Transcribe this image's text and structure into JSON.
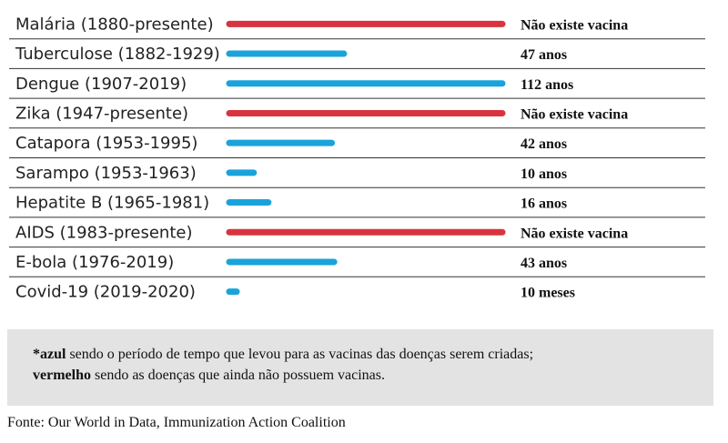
{
  "chart_data": {
    "type": "bar",
    "orientation": "horizontal",
    "unit": "years",
    "categories": [
      "Malária (1880-presente)",
      "Tuberculose (1882-1929)",
      "Dengue (1907-2019)",
      "Zika (1947-presente)",
      "Catapora (1953-1995)",
      "Sarampo (1953-1963)",
      "Hepatite B (1965-1981)",
      "AIDS (1983-presente)",
      "E-bola (1976-2019)",
      "Covid-19 (2019-2020)"
    ],
    "values": [
      null,
      47,
      112,
      null,
      42,
      10,
      16,
      null,
      43,
      0.83
    ],
    "status": [
      "no_vaccine",
      "vaccine",
      "vaccine",
      "no_vaccine",
      "vaccine",
      "vaccine",
      "vaccine",
      "no_vaccine",
      "vaccine",
      "vaccine"
    ],
    "value_labels": [
      "Não existe vacina",
      "47 anos",
      "112 anos",
      "Não existe vacina",
      "42 anos",
      "10 anos",
      "16 anos",
      "Não existe vacina",
      "43 anos",
      "10 meses"
    ],
    "xlim": [
      0,
      112
    ],
    "colors": {
      "vaccine": "#1aa3db",
      "no_vaccine": "#d8333f"
    }
  },
  "note": {
    "blue_marker": "*azul",
    "blue_text": " sendo o período de tempo que levou para as vacinas das doenças serem criadas;",
    "red_marker": "vermelho",
    "red_text": " sendo as doenças que ainda não possuem vacinas."
  },
  "source": "Fonte: Our World in Data, Immunization Action Coalition"
}
